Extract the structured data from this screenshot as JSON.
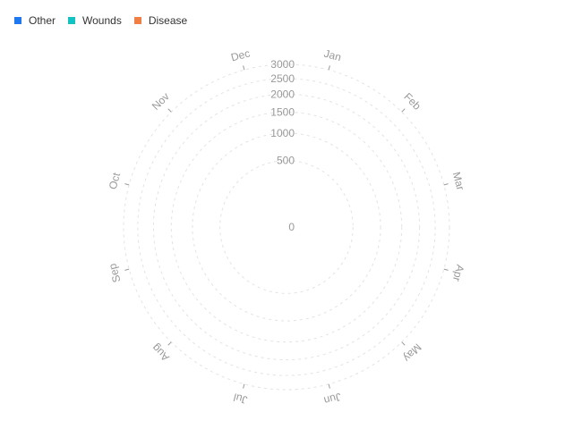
{
  "chart_data": {
    "type": "polar-bar",
    "categories": [
      "Jan",
      "Feb",
      "Mar",
      "Apr",
      "May",
      "Jun",
      "Jul",
      "Aug",
      "Sep",
      "Oct",
      "Nov",
      "Dec"
    ],
    "series": [
      {
        "name": "Other",
        "color": "#1f78f0",
        "values": [
          0,
          0,
          0,
          0,
          0,
          0,
          0,
          0,
          0,
          0,
          0,
          0
        ]
      },
      {
        "name": "Wounds",
        "color": "#13c2c2",
        "values": [
          0,
          0,
          0,
          0,
          0,
          0,
          0,
          0,
          0,
          0,
          0,
          0
        ]
      },
      {
        "name": "Disease",
        "color": "#f07f45",
        "values": [
          0,
          0,
          0,
          0,
          0,
          0,
          0,
          0,
          0,
          0,
          0,
          0
        ]
      }
    ],
    "radial_ticks": [
      "0",
      "500",
      "1000",
      "1500",
      "2000",
      "2500",
      "3000"
    ],
    "radial_tick_values": [
      0,
      500,
      1000,
      1500,
      2000,
      2500,
      3000
    ],
    "rlim": [
      0,
      3000
    ],
    "radial_scale": "sqrt",
    "grid": true,
    "legend_position": "top-left"
  }
}
